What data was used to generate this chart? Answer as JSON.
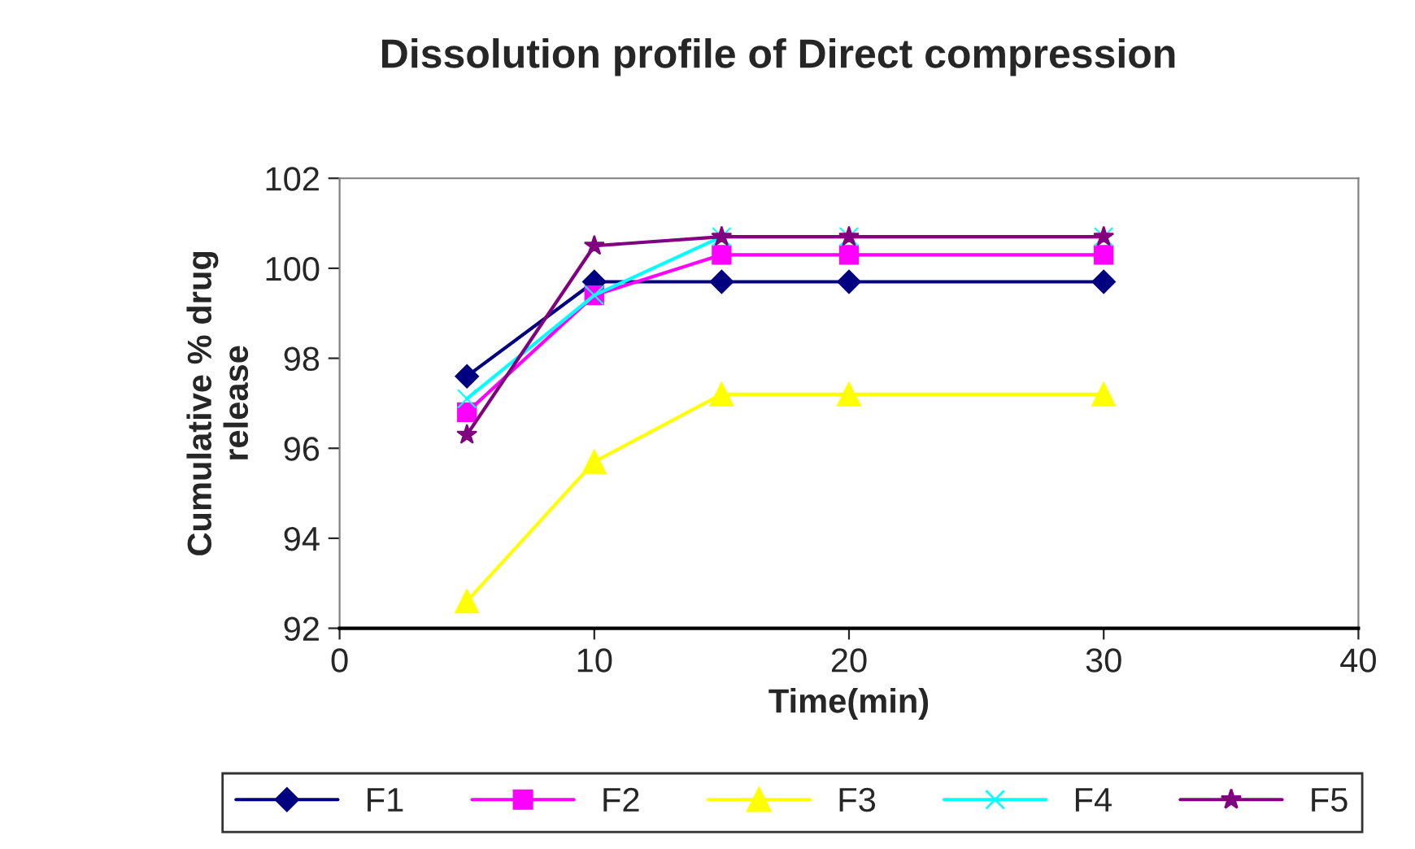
{
  "chart_data": {
    "type": "line",
    "title": "Dissolution profile of Direct compression",
    "xlabel": "Time(min)",
    "ylabel": "Cumulative % drug\nrelease",
    "x": [
      5,
      10,
      15,
      20,
      30
    ],
    "series": [
      {
        "name": "F1",
        "color": "#000080",
        "marker": "diamond",
        "values": [
          97.6,
          99.7,
          99.7,
          99.7,
          99.7
        ]
      },
      {
        "name": "F2",
        "color": "#ff00ff",
        "marker": "square",
        "values": [
          96.8,
          99.4,
          100.3,
          100.3,
          100.3
        ]
      },
      {
        "name": "F3",
        "color": "#ffff00",
        "marker": "triangle",
        "values": [
          92.6,
          95.7,
          97.2,
          97.2,
          97.2
        ]
      },
      {
        "name": "F4",
        "color": "#00ffff",
        "marker": "cross",
        "values": [
          97.1,
          99.4,
          100.7,
          100.7,
          100.7
        ]
      },
      {
        "name": "F5",
        "color": "#800080",
        "marker": "star",
        "values": [
          96.3,
          100.5,
          100.7,
          100.7,
          100.7
        ]
      }
    ],
    "xlim": [
      0,
      40
    ],
    "xticks": [
      0,
      10,
      20,
      30,
      40
    ],
    "ylim": [
      92,
      102
    ],
    "yticks": [
      92,
      94,
      96,
      98,
      100,
      102
    ],
    "legend": "bottom",
    "line_style": "solid"
  }
}
